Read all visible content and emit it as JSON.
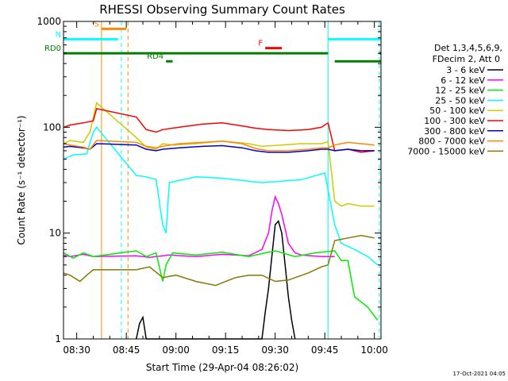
{
  "chart_data": {
    "type": "line",
    "title": "RHESSI Observing Summary Count Rates",
    "xlabel": "Start Time (29-Apr-04 08:26:02)",
    "ylabel": "Count Rate (s⁻¹ detector⁻¹)",
    "y_scale": "log",
    "ylim": [
      1,
      1000
    ],
    "xlim_minutes": [
      0,
      96
    ],
    "yticks": [
      {
        "value": 1,
        "label": "1"
      },
      {
        "value": 10,
        "label": "10"
      },
      {
        "value": 100,
        "label": "100"
      },
      {
        "value": 1000,
        "label": "1000"
      }
    ],
    "xticks": [
      {
        "minute": 4,
        "label": "08:30"
      },
      {
        "minute": 19,
        "label": "08:45"
      },
      {
        "minute": 34,
        "label": "09:00"
      },
      {
        "minute": 49,
        "label": "09:15"
      },
      {
        "minute": 64,
        "label": "09:30"
      },
      {
        "minute": 79,
        "label": "09:45"
      },
      {
        "minute": 94,
        "label": "10:00"
      }
    ],
    "legend_header": [
      "Det 1,3,4,5,6,9,",
      "FDecim 2, Att 0"
    ],
    "series": [
      {
        "name": "3 - 6 keV",
        "color": "#000000",
        "points": [
          [
            22,
            1
          ],
          [
            23,
            1.4
          ],
          [
            24,
            1.6
          ],
          [
            25,
            1
          ],
          [
            60,
            1
          ],
          [
            61,
            1.8
          ],
          [
            62,
            3
          ],
          [
            63,
            6
          ],
          [
            64,
            12
          ],
          [
            65,
            13
          ],
          [
            66,
            10
          ],
          [
            67,
            5
          ],
          [
            68,
            2.5
          ],
          [
            69,
            1.5
          ],
          [
            70,
            1
          ]
        ]
      },
      {
        "name": "6 - 12 keV",
        "color": "#ff00ff",
        "points": [
          [
            0,
            6.2
          ],
          [
            2,
            6.0
          ],
          [
            6,
            6.3
          ],
          [
            9,
            6.0
          ],
          [
            22,
            6.1
          ],
          [
            26,
            5.9
          ],
          [
            32,
            6.2
          ],
          [
            40,
            6.0
          ],
          [
            48,
            6.3
          ],
          [
            56,
            6.1
          ],
          [
            60,
            7
          ],
          [
            62,
            10
          ],
          [
            63,
            16
          ],
          [
            64,
            22
          ],
          [
            65,
            19
          ],
          [
            66,
            15
          ],
          [
            67,
            11
          ],
          [
            68,
            8
          ],
          [
            70,
            6.5
          ],
          [
            72,
            6.2
          ],
          [
            78,
            6.0
          ],
          [
            82,
            6.0
          ]
        ]
      },
      {
        "name": "12 - 25 keV",
        "color": "#00ee00",
        "points": [
          [
            0,
            6.5
          ],
          [
            3,
            5.8
          ],
          [
            6,
            6.5
          ],
          [
            9,
            6.0
          ],
          [
            22,
            6.8
          ],
          [
            25,
            6.0
          ],
          [
            28,
            6.5
          ],
          [
            30,
            3.5
          ],
          [
            31,
            5
          ],
          [
            33,
            6.5
          ],
          [
            40,
            6.2
          ],
          [
            48,
            6.6
          ],
          [
            56,
            6.0
          ],
          [
            60,
            6.4
          ],
          [
            64,
            6.8
          ],
          [
            70,
            6.0
          ],
          [
            76,
            6.5
          ],
          [
            82,
            6.8
          ],
          [
            84,
            5.5
          ],
          [
            86,
            5.5
          ],
          [
            88,
            2.5
          ],
          [
            92,
            2.0
          ],
          [
            95,
            1.5
          ]
        ]
      },
      {
        "name": "25 - 50 keV",
        "color": "#00ffff",
        "points": [
          [
            0,
            50
          ],
          [
            3,
            55
          ],
          [
            7,
            56
          ],
          [
            9,
            90
          ],
          [
            10,
            100
          ],
          [
            22,
            35
          ],
          [
            25,
            34
          ],
          [
            28,
            32
          ],
          [
            30,
            12
          ],
          [
            31,
            10
          ],
          [
            32,
            30
          ],
          [
            40,
            34
          ],
          [
            48,
            33
          ],
          [
            56,
            31
          ],
          [
            60,
            30
          ],
          [
            66,
            31
          ],
          [
            72,
            32
          ],
          [
            79,
            37
          ],
          [
            82,
            12
          ],
          [
            84,
            8
          ],
          [
            88,
            7
          ],
          [
            92,
            6
          ],
          [
            95,
            5
          ]
        ]
      },
      {
        "name": "50 - 100 keV",
        "color": "#cccc00",
        "points": [
          [
            0,
            70
          ],
          [
            2,
            75
          ],
          [
            6,
            72
          ],
          [
            8,
            90
          ],
          [
            10,
            170
          ],
          [
            22,
            80
          ],
          [
            25,
            65
          ],
          [
            28,
            62
          ],
          [
            30,
            70
          ],
          [
            33,
            68
          ],
          [
            40,
            70
          ],
          [
            48,
            74
          ],
          [
            56,
            70
          ],
          [
            60,
            66
          ],
          [
            66,
            68
          ],
          [
            72,
            70
          ],
          [
            78,
            70
          ],
          [
            80,
            73
          ],
          [
            82,
            20
          ],
          [
            84,
            18
          ],
          [
            86,
            19
          ],
          [
            90,
            18
          ],
          [
            94,
            18
          ]
        ]
      },
      {
        "name": "100 - 300 keV",
        "color": "#ff0000",
        "points": [
          [
            0,
            100
          ],
          [
            2,
            105
          ],
          [
            6,
            110
          ],
          [
            9,
            115
          ],
          [
            10,
            150
          ],
          [
            22,
            125
          ],
          [
            25,
            95
          ],
          [
            28,
            90
          ],
          [
            30,
            95
          ],
          [
            35,
            100
          ],
          [
            42,
            107
          ],
          [
            48,
            110
          ],
          [
            54,
            103
          ],
          [
            58,
            98
          ],
          [
            62,
            95
          ],
          [
            68,
            93
          ],
          [
            74,
            95
          ],
          [
            78,
            100
          ],
          [
            80,
            110
          ],
          [
            82,
            60
          ],
          [
            86,
            62
          ],
          [
            90,
            58
          ],
          [
            94,
            60
          ]
        ]
      },
      {
        "name": "300 - 800 keV",
        "color": "#0000cc",
        "points": [
          [
            0,
            65
          ],
          [
            2,
            66
          ],
          [
            6,
            64
          ],
          [
            8,
            62
          ],
          [
            10,
            70
          ],
          [
            22,
            68
          ],
          [
            25,
            62
          ],
          [
            28,
            60
          ],
          [
            30,
            62
          ],
          [
            35,
            64
          ],
          [
            42,
            66
          ],
          [
            48,
            67
          ],
          [
            54,
            64
          ],
          [
            58,
            60
          ],
          [
            62,
            58
          ],
          [
            68,
            58
          ],
          [
            74,
            60
          ],
          [
            78,
            62
          ],
          [
            80,
            62
          ],
          [
            82,
            60
          ],
          [
            86,
            62
          ],
          [
            90,
            60
          ],
          [
            94,
            60
          ]
        ]
      },
      {
        "name": "800 - 7000 keV",
        "color": "#ff8800",
        "points": [
          [
            0,
            70
          ],
          [
            2,
            68
          ],
          [
            6,
            65
          ],
          [
            8,
            62
          ],
          [
            10,
            75
          ],
          [
            22,
            72
          ],
          [
            25,
            66
          ],
          [
            28,
            64
          ],
          [
            30,
            66
          ],
          [
            35,
            70
          ],
          [
            42,
            72
          ],
          [
            48,
            74
          ],
          [
            54,
            70
          ],
          [
            58,
            63
          ],
          [
            62,
            60
          ],
          [
            68,
            60
          ],
          [
            74,
            62
          ],
          [
            78,
            64
          ],
          [
            80,
            64
          ],
          [
            82,
            68
          ],
          [
            86,
            72
          ],
          [
            90,
            70
          ],
          [
            94,
            68
          ]
        ]
      },
      {
        "name": "7000 - 15000 keV",
        "color": "#887700",
        "points": [
          [
            0,
            4.2
          ],
          [
            2,
            4.0
          ],
          [
            5,
            3.5
          ],
          [
            7,
            4.0
          ],
          [
            9,
            4.5
          ],
          [
            22,
            4.5
          ],
          [
            26,
            4.8
          ],
          [
            30,
            3.8
          ],
          [
            34,
            4.0
          ],
          [
            40,
            3.5
          ],
          [
            46,
            3.2
          ],
          [
            52,
            3.8
          ],
          [
            56,
            4.0
          ],
          [
            60,
            4.0
          ],
          [
            64,
            3.5
          ],
          [
            68,
            3.6
          ],
          [
            74,
            4.2
          ],
          [
            78,
            4.8
          ],
          [
            80,
            5.0
          ],
          [
            82,
            8.5
          ],
          [
            86,
            9.0
          ],
          [
            90,
            9.5
          ],
          [
            94,
            9.0
          ]
        ]
      }
    ],
    "annotations": [
      {
        "label": "S",
        "color": "#ff8800",
        "y": 850,
        "x0": 11.5,
        "x1": 19
      },
      {
        "label": "N",
        "color": "#00ffff",
        "y": 680,
        "x0": 0,
        "x1": 16.5
      },
      {
        "label": "",
        "color": "#00ffff",
        "y": 680,
        "x0": 80,
        "x1": 96
      },
      {
        "label": "F",
        "color": "#ff0000",
        "y": 560,
        "x0": 61,
        "x1": 66
      },
      {
        "label": "RD0",
        "color": "#008000",
        "y": 500,
        "x0": 0,
        "x1": 80
      },
      {
        "label": "",
        "color": "#008000",
        "y": 500,
        "x0": 95.5,
        "x1": 96
      },
      {
        "label": "RD4",
        "color": "#008000",
        "y": 420,
        "x0": 31,
        "x1": 33
      },
      {
        "label": "",
        "color": "#008000",
        "y": 420,
        "x0": 82,
        "x1": 96
      }
    ],
    "vlines": [
      {
        "x": 11.5,
        "color": "#ff8800",
        "dash": false
      },
      {
        "x": 17.5,
        "color": "#00ffff",
        "dash": true
      },
      {
        "x": 19.5,
        "color": "#ff8800",
        "dash": true
      },
      {
        "x": 80.0,
        "color": "#00ffff",
        "dash": false
      },
      {
        "x": 95.5,
        "color": "#00ffff",
        "dash": true
      }
    ],
    "footer_date": "17-Oct-2021 04:05"
  }
}
